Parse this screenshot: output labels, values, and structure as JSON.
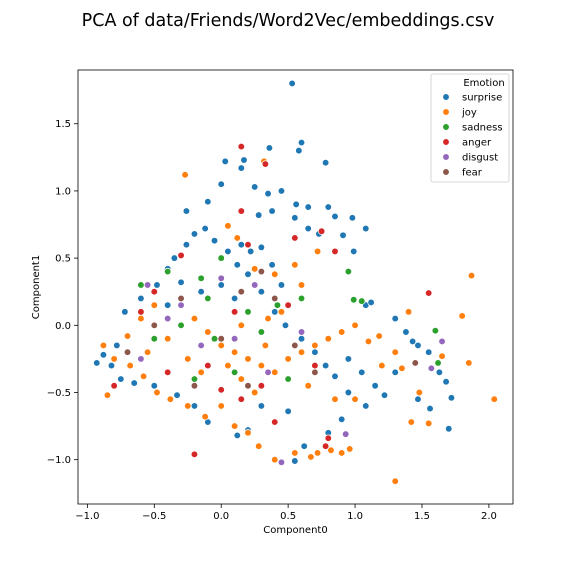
{
  "chart_data": {
    "type": "scatter",
    "title": "PCA of data/Friends/Word2Vec/embeddings.csv",
    "xlabel": "Component0",
    "ylabel": "Component1",
    "xlim": [
      -1.07,
      2.18
    ],
    "ylim": [
      -1.33,
      1.9
    ],
    "xticks": [
      "−1.0",
      "−0.5",
      "0.0",
      "0.5",
      "1.0",
      "1.5",
      "2.0"
    ],
    "xtick_values": [
      -1.0,
      -0.5,
      0.0,
      0.5,
      1.0,
      1.5,
      2.0
    ],
    "yticks": [
      "−1.0",
      "−0.5",
      "0.0",
      "0.5",
      "1.0",
      "1.5"
    ],
    "ytick_values": [
      -1.0,
      -0.5,
      0.0,
      0.5,
      1.0,
      1.5
    ],
    "grid": false,
    "legend": {
      "title": "Emotion",
      "placement": "top-right",
      "entries": [
        {
          "name": "surprise",
          "color": "#1f77b4"
        },
        {
          "name": "joy",
          "color": "#ff7f0e"
        },
        {
          "name": "sadness",
          "color": "#2ca02c"
        },
        {
          "name": "anger",
          "color": "#d62728"
        },
        {
          "name": "disgust",
          "color": "#9467bd"
        },
        {
          "name": "fear",
          "color": "#8c564b"
        }
      ]
    },
    "series": [
      {
        "name": "surprise",
        "color": "#1f77b4",
        "points": [
          [
            0.53,
            1.8
          ],
          [
            0.6,
            1.36
          ],
          [
            0.58,
            1.3
          ],
          [
            0.36,
            1.32
          ],
          [
            0.78,
            1.21
          ],
          [
            0.17,
            1.23
          ],
          [
            0.15,
            1.17
          ],
          [
            0.03,
            1.22
          ],
          [
            0.0,
            1.05
          ],
          [
            0.25,
            1.03
          ],
          [
            0.35,
            0.98
          ],
          [
            0.45,
            1.0
          ],
          [
            0.38,
            0.85
          ],
          [
            0.56,
            0.9
          ],
          [
            0.65,
            0.88
          ],
          [
            0.8,
            0.88
          ],
          [
            0.85,
            0.81
          ],
          [
            0.98,
            0.8
          ],
          [
            1.08,
            0.72
          ],
          [
            -0.26,
            0.85
          ],
          [
            -0.1,
            0.92
          ],
          [
            0.55,
            0.8
          ],
          [
            0.28,
            0.82
          ],
          [
            0.91,
            0.67
          ],
          [
            0.65,
            0.72
          ],
          [
            0.73,
            0.68
          ],
          [
            0.99,
            0.55
          ],
          [
            1.08,
            0.15
          ],
          [
            1.12,
            0.17
          ],
          [
            1.3,
            0.05
          ],
          [
            1.38,
            -0.05
          ],
          [
            1.43,
            -0.12
          ],
          [
            1.47,
            -0.15
          ],
          [
            1.55,
            -0.2
          ],
          [
            1.63,
            -0.35
          ],
          [
            1.68,
            -0.42
          ],
          [
            1.72,
            -0.54
          ],
          [
            1.56,
            -0.62
          ],
          [
            1.7,
            -0.77
          ],
          [
            1.47,
            -0.55
          ],
          [
            1.3,
            -0.35
          ],
          [
            1.22,
            -0.52
          ],
          [
            1.15,
            -0.45
          ],
          [
            1.08,
            -0.6
          ],
          [
            0.95,
            -0.5
          ],
          [
            0.9,
            -0.7
          ],
          [
            0.8,
            -0.8
          ],
          [
            0.62,
            -0.9
          ],
          [
            0.55,
            -1.01
          ],
          [
            0.4,
            -0.72
          ],
          [
            0.3,
            -0.6
          ],
          [
            0.5,
            -0.64
          ],
          [
            0.2,
            -0.78
          ],
          [
            0.12,
            -0.82
          ],
          [
            -0.1,
            -0.72
          ],
          [
            -0.2,
            -0.6
          ],
          [
            -0.33,
            -0.52
          ],
          [
            -0.5,
            -0.45
          ],
          [
            -0.65,
            -0.43
          ],
          [
            -0.75,
            -0.4
          ],
          [
            -0.82,
            -0.3
          ],
          [
            -0.88,
            -0.22
          ],
          [
            -0.93,
            -0.28
          ],
          [
            -0.78,
            -0.15
          ],
          [
            -0.72,
            0.1
          ],
          [
            -0.6,
            0.2
          ],
          [
            -0.48,
            0.3
          ],
          [
            -0.4,
            0.42
          ],
          [
            -0.35,
            0.5
          ],
          [
            -0.26,
            0.6
          ],
          [
            -0.2,
            0.68
          ],
          [
            -0.12,
            0.72
          ],
          [
            -0.05,
            0.63
          ],
          [
            0.05,
            0.55
          ],
          [
            0.12,
            0.45
          ],
          [
            0.2,
            0.38
          ],
          [
            0.3,
            0.25
          ],
          [
            0.4,
            0.1
          ],
          [
            0.48,
            0.0
          ],
          [
            0.6,
            -0.1
          ],
          [
            0.7,
            -0.2
          ],
          [
            0.78,
            -0.3
          ],
          [
            0.85,
            -0.38
          ],
          [
            0.95,
            -0.25
          ],
          [
            1.05,
            -0.35
          ],
          [
            0.3,
            0.58
          ],
          [
            0.15,
            0.6
          ],
          [
            -0.3,
            0.32
          ],
          [
            -0.15,
            0.25
          ],
          [
            0.0,
            0.3
          ],
          [
            0.1,
            0.2
          ],
          [
            -0.4,
            0.15
          ],
          [
            0.22,
            0.55
          ],
          [
            0.38,
            0.45
          ],
          [
            0.45,
            0.3
          ]
        ]
      },
      {
        "name": "joy",
        "color": "#ff7f0e",
        "points": [
          [
            -0.27,
            1.12
          ],
          [
            0.32,
            1.22
          ],
          [
            2.04,
            -0.55
          ],
          [
            1.87,
            0.37
          ],
          [
            1.8,
            0.07
          ],
          [
            1.85,
            -0.28
          ],
          [
            1.65,
            -0.23
          ],
          [
            1.48,
            -0.5
          ],
          [
            1.42,
            -0.72
          ],
          [
            1.3,
            -1.16
          ],
          [
            1.55,
            -0.73
          ],
          [
            1.4,
            0.1
          ],
          [
            1.3,
            -0.2
          ],
          [
            1.18,
            -0.08
          ],
          [
            1.1,
            -0.12
          ],
          [
            1.0,
            -0.55
          ],
          [
            0.96,
            -0.92
          ],
          [
            0.9,
            -0.95
          ],
          [
            0.82,
            -0.93
          ],
          [
            0.72,
            -0.95
          ],
          [
            0.67,
            -0.98
          ],
          [
            0.55,
            -0.95
          ],
          [
            0.4,
            -1.0
          ],
          [
            0.28,
            -0.9
          ],
          [
            0.2,
            -0.8
          ],
          [
            0.1,
            -0.75
          ],
          [
            0.0,
            -0.6
          ],
          [
            -0.12,
            -0.68
          ],
          [
            -0.25,
            -0.6
          ],
          [
            -0.38,
            -0.55
          ],
          [
            -0.48,
            -0.5
          ],
          [
            -0.58,
            -0.38
          ],
          [
            -0.68,
            -0.3
          ],
          [
            -0.8,
            -0.25
          ],
          [
            -0.88,
            -0.15
          ],
          [
            -0.85,
            -0.52
          ],
          [
            -0.7,
            -0.08
          ],
          [
            -0.6,
            0.05
          ],
          [
            -0.5,
            0.15
          ],
          [
            -0.3,
            0.2
          ],
          [
            -0.2,
            0.05
          ],
          [
            -0.1,
            -0.05
          ],
          [
            0.0,
            -0.15
          ],
          [
            0.1,
            -0.2
          ],
          [
            0.2,
            -0.25
          ],
          [
            0.3,
            -0.3
          ],
          [
            0.4,
            -0.35
          ],
          [
            0.5,
            -0.25
          ],
          [
            0.6,
            -0.2
          ],
          [
            0.7,
            -0.15
          ],
          [
            0.8,
            -0.1
          ],
          [
            0.9,
            -0.05
          ],
          [
            1.0,
            0.0
          ],
          [
            0.55,
            0.45
          ],
          [
            0.4,
            0.38
          ],
          [
            0.25,
            0.42
          ],
          [
            0.12,
            0.65
          ],
          [
            0.05,
            0.74
          ],
          [
            0.72,
            0.55
          ],
          [
            0.6,
            0.3
          ],
          [
            0.45,
            0.1
          ],
          [
            0.35,
            0.05
          ],
          [
            0.15,
            0.0
          ],
          [
            -0.4,
            -0.1
          ],
          [
            -0.55,
            -0.2
          ],
          [
            0.25,
            -0.5
          ],
          [
            0.15,
            -0.4
          ],
          [
            0.65,
            -0.45
          ],
          [
            0.85,
            -0.55
          ],
          [
            1.2,
            -0.3
          ],
          [
            1.35,
            -0.32
          ],
          [
            0.05,
            -0.3
          ],
          [
            -0.15,
            -0.35
          ],
          [
            -0.25,
            -0.25
          ],
          [
            0.33,
            -0.15
          ]
        ]
      },
      {
        "name": "sadness",
        "color": "#2ca02c",
        "points": [
          [
            0.95,
            0.4
          ],
          [
            0.99,
            0.19
          ],
          [
            1.05,
            0.18
          ],
          [
            1.6,
            -0.04
          ],
          [
            1.62,
            -0.28
          ],
          [
            0.42,
            0.15
          ],
          [
            0.2,
            0.1
          ],
          [
            -0.1,
            0.2
          ],
          [
            -0.3,
            0.0
          ],
          [
            -0.5,
            -0.1
          ],
          [
            -0.2,
            -0.4
          ],
          [
            0.0,
            0.5
          ],
          [
            0.3,
            -0.05
          ],
          [
            -0.6,
            0.3
          ],
          [
            -0.05,
            -0.1
          ],
          [
            0.6,
            0.2
          ],
          [
            -0.4,
            0.4
          ],
          [
            0.1,
            -0.35
          ],
          [
            0.5,
            -0.4
          ],
          [
            -0.15,
            0.35
          ]
        ]
      },
      {
        "name": "anger",
        "color": "#d62728",
        "points": [
          [
            0.15,
            1.33
          ],
          [
            0.33,
            1.2
          ],
          [
            -0.2,
            -0.96
          ],
          [
            0.8,
            -0.84
          ],
          [
            0.4,
            -0.72
          ],
          [
            0.15,
            -0.55
          ],
          [
            1.55,
            0.24
          ],
          [
            0.75,
            0.7
          ],
          [
            0.55,
            0.65
          ],
          [
            0.2,
            0.6
          ],
          [
            0.85,
            0.55
          ],
          [
            -0.3,
            0.52
          ],
          [
            0.5,
            0.15
          ],
          [
            -0.1,
            -0.3
          ],
          [
            0.3,
            -0.45
          ],
          [
            0.7,
            -0.3
          ],
          [
            -0.4,
            -0.35
          ],
          [
            -0.6,
            0.1
          ],
          [
            -0.8,
            -0.45
          ],
          [
            0.1,
            0.1
          ],
          [
            0.15,
            0.85
          ],
          [
            0.78,
            -0.9
          ],
          [
            0.0,
            -0.48
          ],
          [
            -0.5,
            0.25
          ]
        ]
      },
      {
        "name": "disgust",
        "color": "#9467bd",
        "points": [
          [
            0.45,
            -1.02
          ],
          [
            0.93,
            -0.81
          ],
          [
            1.65,
            -0.12
          ],
          [
            1.57,
            -0.32
          ],
          [
            -0.55,
            0.3
          ],
          [
            -0.3,
            0.15
          ],
          [
            0.1,
            -0.1
          ],
          [
            -0.6,
            -0.25
          ],
          [
            0.25,
            0.3
          ],
          [
            0.6,
            -0.05
          ],
          [
            -0.15,
            -0.15
          ],
          [
            0.35,
            -0.35
          ],
          [
            -0.4,
            0.05
          ],
          [
            0.0,
            0.35
          ]
        ]
      },
      {
        "name": "fear",
        "color": "#8c564b",
        "points": [
          [
            1.45,
            -0.28
          ],
          [
            0.2,
            -0.45
          ],
          [
            -0.3,
            0.2
          ],
          [
            0.4,
            0.2
          ],
          [
            0.0,
            -0.1
          ],
          [
            -0.5,
            0.0
          ],
          [
            0.7,
            -0.35
          ],
          [
            -0.2,
            -0.45
          ],
          [
            0.15,
            0.25
          ],
          [
            0.55,
            -0.15
          ],
          [
            -0.7,
            -0.2
          ],
          [
            0.3,
            0.4
          ]
        ]
      }
    ]
  }
}
